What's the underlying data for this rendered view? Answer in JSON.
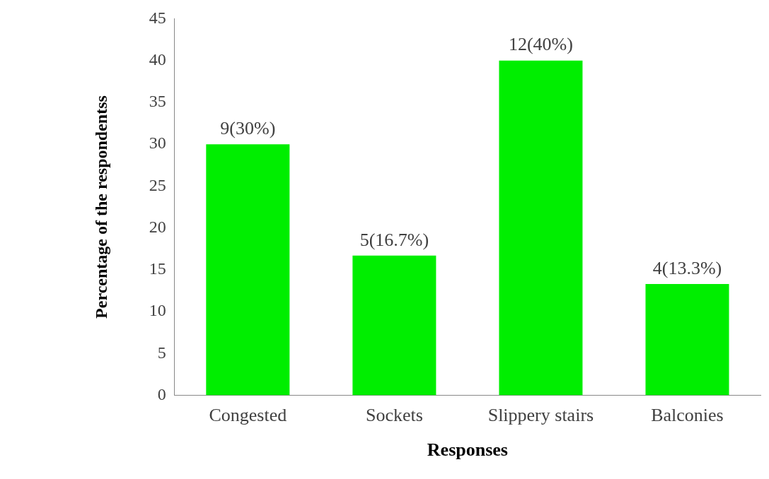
{
  "chart_data": {
    "type": "bar",
    "xlabel": "Responses",
    "ylabel": "Percentage of the respondentss",
    "categories": [
      "Congested",
      "Sockets",
      "Slippery stairs",
      "Balconies"
    ],
    "values": [
      30,
      16.7,
      40,
      13.3
    ],
    "color": "#00ee00",
    "value_labels": [
      "9(30%)",
      "5(16.7%)",
      "12(40%)",
      "4(13.3%)"
    ],
    "ylim": [
      0,
      45
    ],
    "yticks": [
      0,
      5,
      10,
      15,
      20,
      25,
      30,
      35,
      40,
      45
    ],
    "grid": false,
    "legend": false
  }
}
